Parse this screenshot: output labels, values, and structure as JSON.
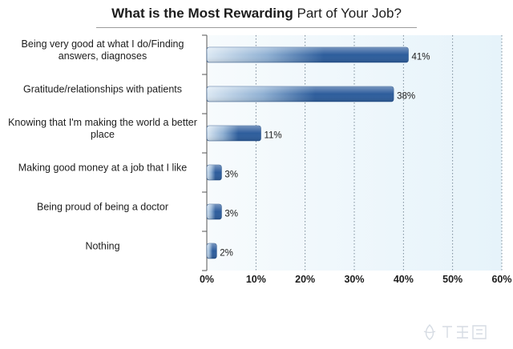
{
  "chart_data": {
    "type": "bar",
    "orientation": "horizontal",
    "title_bold": "What is the Most Rewarding",
    "title_normal": "Part of Your Job?",
    "categories": [
      [
        "Being very good at what I do/Finding",
        "answers, diagnoses"
      ],
      [
        "Gratitude/relationships with patients"
      ],
      [
        "Knowing that I'm making the world a better",
        "place"
      ],
      [
        "Making good money at a job that I like"
      ],
      [
        "Being proud of being a doctor"
      ],
      [
        "Nothing"
      ]
    ],
    "values": [
      41,
      38,
      11,
      3,
      3,
      2
    ],
    "value_labels": [
      "41%",
      "38%",
      "11%",
      "3%",
      "3%",
      "2%"
    ],
    "xlim": [
      0,
      60
    ],
    "xticks": [
      "0%",
      "10%",
      "20%",
      "30%",
      "40%",
      "50%",
      "60%"
    ],
    "grid": true,
    "legend": "none",
    "colors": {
      "bar_dark": "#2d5d9c",
      "bar_light": "#dbe8f3",
      "plot_bg": "#eef6fb",
      "grid": "#6e8090"
    }
  }
}
